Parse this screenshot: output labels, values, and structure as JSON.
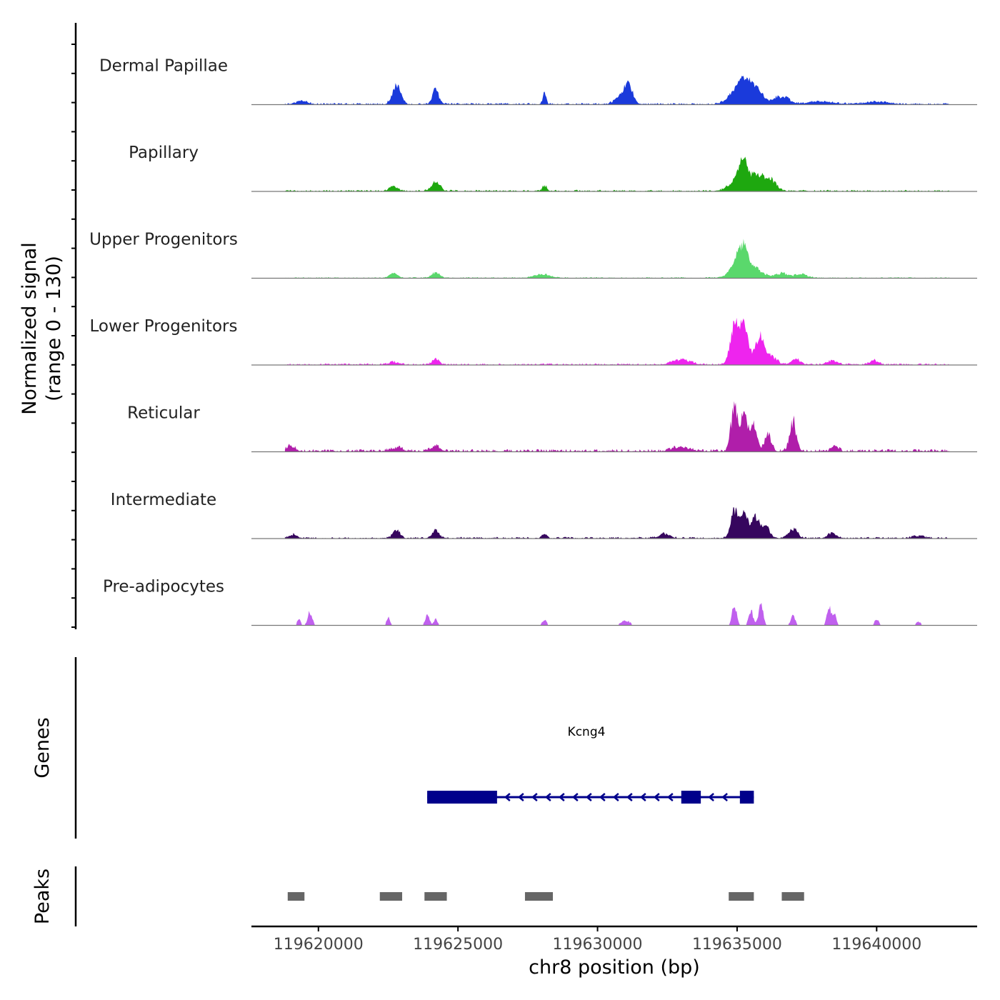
{
  "chart_data": {
    "type": "area",
    "title": "",
    "ylabel_line1": "Normalized signal",
    "ylabel_line2": "(range 0 - 130)",
    "ylim": [
      0,
      130
    ],
    "xlabel": "chr8 position (bp)",
    "xlim": [
      119617600,
      119643600
    ],
    "xticks": [
      119620000,
      119625000,
      119630000,
      119635000,
      119640000
    ],
    "xtick_labels": [
      "119620000",
      "119625000",
      "119630000",
      "119635000",
      "119640000"
    ],
    "track_range": [
      119618800,
      119642600
    ],
    "tracks": [
      {
        "name": "Dermal Papillae",
        "color": "#1a3adb",
        "base": 3,
        "peaks": [
          [
            119619400,
            8,
            200
          ],
          [
            119622800,
            42,
            150
          ],
          [
            119624200,
            30,
            120
          ],
          [
            119628100,
            26,
            60
          ],
          [
            119631100,
            45,
            150
          ],
          [
            119630800,
            15,
            200
          ],
          [
            119635000,
            28,
            300
          ],
          [
            119635300,
            32,
            250
          ],
          [
            119635700,
            28,
            250
          ],
          [
            119636600,
            18,
            250
          ],
          [
            119638000,
            6,
            500
          ],
          [
            119640000,
            6,
            400
          ]
        ]
      },
      {
        "name": "Papillary",
        "color": "#1ea80f",
        "base": 3,
        "peaks": [
          [
            119622700,
            10,
            150
          ],
          [
            119624200,
            20,
            150
          ],
          [
            119628100,
            12,
            80
          ],
          [
            119635000,
            20,
            300
          ],
          [
            119635200,
            55,
            150
          ],
          [
            119635700,
            35,
            250
          ],
          [
            119636200,
            25,
            200
          ]
        ]
      },
      {
        "name": "Upper Progenitors",
        "color": "#5ad86c",
        "base": 2,
        "peaks": [
          [
            119622700,
            10,
            150
          ],
          [
            119624200,
            12,
            150
          ],
          [
            119628000,
            8,
            300
          ],
          [
            119635200,
            55,
            200
          ],
          [
            119635000,
            20,
            300
          ],
          [
            119635700,
            18,
            250
          ],
          [
            119636600,
            10,
            250
          ],
          [
            119637300,
            8,
            200
          ]
        ]
      },
      {
        "name": "Lower Progenitors",
        "color": "#ee24ee",
        "base": 3,
        "peaks": [
          [
            119622700,
            6,
            150
          ],
          [
            119624200,
            14,
            120
          ],
          [
            119633000,
            12,
            300
          ],
          [
            119634900,
            80,
            150
          ],
          [
            119635250,
            95,
            150
          ],
          [
            119635800,
            60,
            150
          ],
          [
            119636200,
            20,
            200
          ],
          [
            119637100,
            12,
            150
          ],
          [
            119638400,
            8,
            200
          ],
          [
            119639900,
            10,
            150
          ]
        ]
      },
      {
        "name": "Reticular",
        "color": "#b01eaa",
        "base": 5,
        "peaks": [
          [
            119619000,
            12,
            150
          ],
          [
            119622800,
            8,
            200
          ],
          [
            119624200,
            12,
            150
          ],
          [
            119633000,
            10,
            300
          ],
          [
            119634900,
            95,
            120
          ],
          [
            119635250,
            85,
            120
          ],
          [
            119635600,
            62,
            120
          ],
          [
            119636100,
            38,
            120
          ],
          [
            119637000,
            65,
            120
          ],
          [
            119638500,
            12,
            120
          ]
        ]
      },
      {
        "name": "Intermediate",
        "color": "#36065e",
        "base": 3,
        "peaks": [
          [
            119619100,
            8,
            150
          ],
          [
            119622800,
            20,
            120
          ],
          [
            119624200,
            18,
            120
          ],
          [
            119628100,
            12,
            80
          ],
          [
            119632400,
            10,
            200
          ],
          [
            119634900,
            58,
            130
          ],
          [
            119635250,
            62,
            130
          ],
          [
            119635650,
            45,
            130
          ],
          [
            119636000,
            28,
            150
          ],
          [
            119637000,
            22,
            150
          ],
          [
            119638400,
            12,
            150
          ],
          [
            119641500,
            5,
            200
          ]
        ]
      },
      {
        "name": "Pre-adipocytes",
        "color": "#c060ee",
        "base": 0,
        "sparse": true,
        "peaks": [
          [
            119619700,
            30,
            80
          ],
          [
            119619300,
            15,
            60
          ],
          [
            119622500,
            18,
            60
          ],
          [
            119623900,
            22,
            80
          ],
          [
            119624200,
            15,
            60
          ],
          [
            119628100,
            12,
            80
          ],
          [
            119631000,
            12,
            150
          ],
          [
            119634900,
            45,
            80
          ],
          [
            119635500,
            32,
            80
          ],
          [
            119635850,
            48,
            80
          ],
          [
            119637000,
            22,
            80
          ],
          [
            119638300,
            38,
            80
          ],
          [
            119638500,
            22,
            60
          ],
          [
            119640000,
            12,
            80
          ],
          [
            119641500,
            8,
            80
          ]
        ]
      }
    ],
    "genes_label": "Genes",
    "gene": {
      "name": "Kcng4",
      "color": "#00008b",
      "start": 119623900,
      "end": 119635600,
      "strand": "-",
      "exons": [
        [
          119623900,
          119626400
        ],
        [
          119633000,
          119633700
        ],
        [
          119635100,
          119635600
        ]
      ],
      "thick_exon": [
        119623900,
        119625600
      ]
    },
    "peaks_label": "Peaks",
    "peak_color": "#666666",
    "peak_regions": [
      [
        119618900,
        119619500
      ],
      [
        119622200,
        119623000
      ],
      [
        119623800,
        119624600
      ],
      [
        119627400,
        119628400
      ],
      [
        119634700,
        119635600
      ],
      [
        119636600,
        119637400
      ]
    ]
  }
}
